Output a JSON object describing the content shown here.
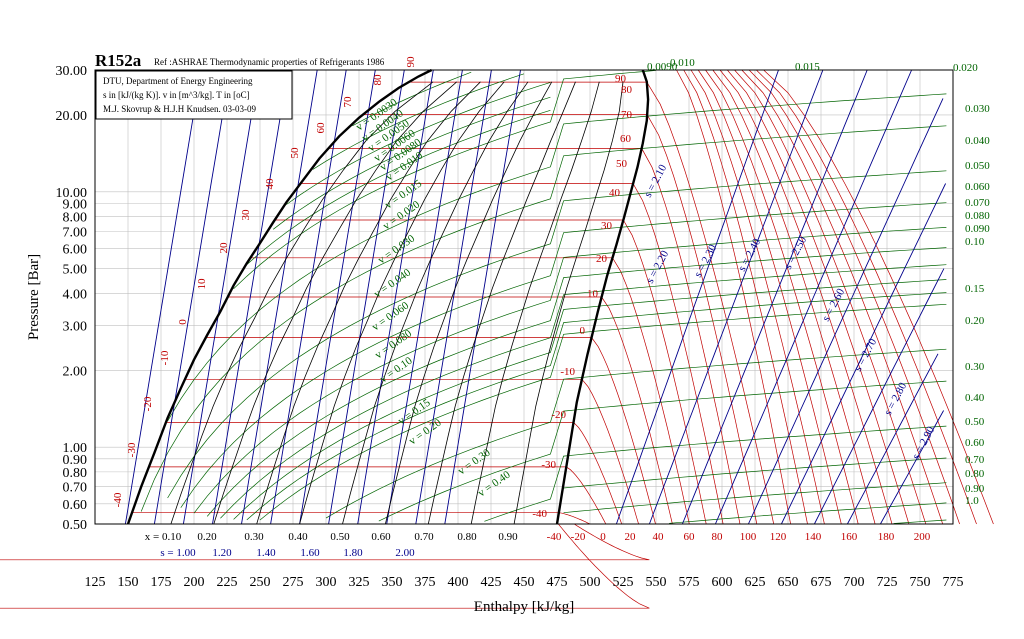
{
  "chart_data": {
    "type": "line",
    "title": "R152a",
    "reference": "Ref :ASHRAE Thermodynamic properties of Refrigerants 1986",
    "info_box": [
      "DTU, Department of Energy Engineering",
      "s in [kJ/(kg K)]. v in [m^3/kg]. T in [oC]",
      "M.J. Skovrup & H.J.H Knudsen. 03-03-09"
    ],
    "xlabel": "Enthalpy [kJ/kg]",
    "ylabel": "Pressure [Bar]",
    "xlim": [
      125,
      775
    ],
    "ylim": [
      0.5,
      30
    ],
    "yscale": "log",
    "grid": true,
    "x_ticks": [
      "125",
      "150",
      "175",
      "200",
      "225",
      "250",
      "275",
      "300",
      "325",
      "350",
      "375",
      "400",
      "425",
      "450",
      "475",
      "500",
      "525",
      "550",
      "575",
      "600",
      "625",
      "650",
      "675",
      "700",
      "725",
      "750",
      "775"
    ],
    "y_ticks": [
      {
        "value": 30,
        "label": "30.00"
      },
      {
        "value": 20,
        "label": "20.00"
      },
      {
        "value": 10,
        "label": "10.00"
      },
      {
        "value": 9,
        "label": "9.00"
      },
      {
        "value": 8,
        "label": "8.00"
      },
      {
        "value": 7,
        "label": "7.00"
      },
      {
        "value": 6,
        "label": "6.00"
      },
      {
        "value": 5,
        "label": "5.00"
      },
      {
        "value": 4,
        "label": "4.00"
      },
      {
        "value": 3,
        "label": "3.00"
      },
      {
        "value": 2,
        "label": "2.00"
      },
      {
        "value": 1,
        "label": "1.00"
      },
      {
        "value": 0.9,
        "label": "0.90"
      },
      {
        "value": 0.8,
        "label": "0.80"
      },
      {
        "value": 0.7,
        "label": "0.70"
      },
      {
        "value": 0.6,
        "label": "0.60"
      },
      {
        "value": 0.5,
        "label": "0.50"
      }
    ],
    "saturated_liquid": [
      [
        150,
        0.5
      ],
      [
        160,
        0.7
      ],
      [
        170,
        0.95
      ],
      [
        180,
        1.3
      ],
      [
        190,
        1.7
      ],
      [
        200,
        2.2
      ],
      [
        210,
        2.75
      ],
      [
        220,
        3.4
      ],
      [
        230,
        4.3
      ],
      [
        240,
        5.25
      ],
      [
        250,
        6.3
      ],
      [
        260,
        7.6
      ],
      [
        270,
        9.1
      ],
      [
        282,
        11.0
      ],
      [
        295,
        13.5
      ],
      [
        310,
        16.5
      ],
      [
        325,
        19.5
      ],
      [
        340,
        22.5
      ],
      [
        355,
        25.5
      ],
      [
        370,
        28.3
      ],
      [
        380,
        30
      ]
    ],
    "saturated_vapor": [
      [
        475,
        0.5
      ],
      [
        483,
        0.9
      ],
      [
        490,
        1.5
      ],
      [
        498,
        2.3
      ],
      [
        506,
        3.4
      ],
      [
        513,
        4.7
      ],
      [
        520,
        6.2
      ],
      [
        526,
        8.0
      ],
      [
        531,
        10.0
      ],
      [
        536,
        12.5
      ],
      [
        540,
        15.5
      ],
      [
        543,
        19.0
      ],
      [
        544,
        23.0
      ],
      [
        543,
        27.0
      ],
      [
        540,
        30
      ]
    ],
    "quality_labels": [
      "x = 0.10",
      "0.20",
      "0.30",
      "0.40",
      "0.50",
      "0.60",
      "0.70",
      "0.80",
      "0.90"
    ],
    "entropy_bottom_labels": [
      "s = 1.00",
      "1.20",
      "1.40",
      "1.60",
      "1.80",
      "2.00"
    ],
    "entropy_labels": [
      "s = 2.10",
      "s = 2.20",
      "s = 2.30",
      "s = 2.40",
      "s = 2.50",
      "s = 2.60",
      "s = 2.70",
      "s = 2.80",
      "s = 2.90"
    ],
    "temperature_left_labels": [
      "-40",
      "-30",
      "-20",
      "-10",
      "0",
      "10",
      "20",
      "30",
      "40",
      "50",
      "60",
      "70",
      "80",
      "90"
    ],
    "temperature_right_labels": [
      "-40",
      "-30",
      "-20",
      "-10",
      "0",
      "10",
      "20",
      "30",
      "40",
      "50",
      "60",
      "70",
      "80",
      "90"
    ],
    "temperature_bottom_labels": [
      "-40",
      "-20",
      "0",
      "20",
      "40",
      "60",
      "80",
      "100",
      "120",
      "140",
      "160",
      "180",
      "200"
    ],
    "volume_left_labels": [
      "v = 0.0030",
      "v = 0.0040",
      "v = 0.0050",
      "v = 0.0060",
      "v = 0.0080",
      "v = 0.010",
      "v = 0.015",
      "v = 0.020",
      "v = 0.030",
      "v = 0.040",
      "v = 0.060",
      "v = 0.080",
      "v = 0.10",
      "v = 0.15",
      "v = 0.20",
      "v = 0.30",
      "v = 0.40"
    ],
    "volume_top_labels": [
      "0.0090",
      "0.010",
      "0.015",
      "0.020"
    ],
    "volume_right_labels": [
      "0.030",
      "0.040",
      "0.050",
      "0.060",
      "0.070",
      "0.080",
      "0.090",
      "0.10",
      "0.15",
      "0.20",
      "0.30",
      "0.40",
      "0.50",
      "0.60",
      "0.70",
      "0.80",
      "0.90",
      "1.0"
    ]
  },
  "colors": {
    "temperature": "#c00000",
    "volume": "#006400",
    "entropy": "#00008b",
    "quality": "#000000",
    "grid": "#c0c0c0"
  }
}
